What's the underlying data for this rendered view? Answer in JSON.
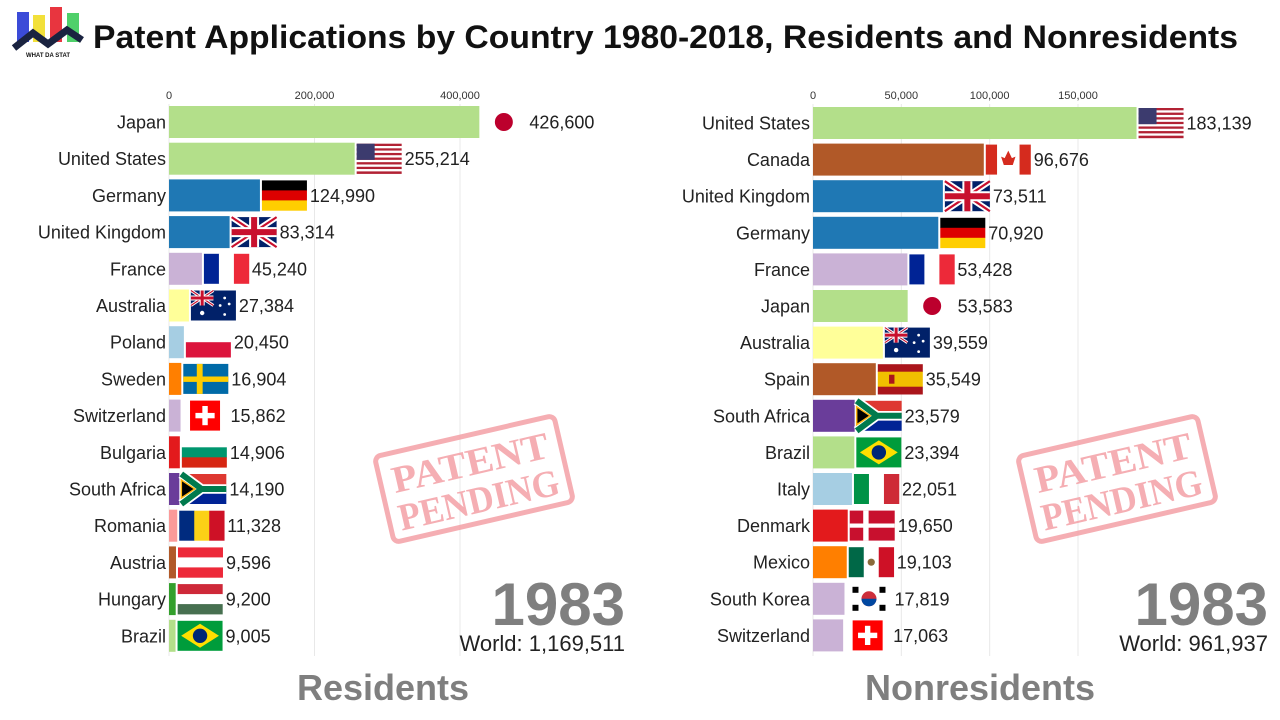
{
  "header": {
    "title": "Patent Applications by Country 1980-2018, Residents and Nonresidents",
    "logo_text": "WHAT DA STAT"
  },
  "stamp": {
    "line1": "PATENT",
    "line2": "PENDING",
    "color": "#f4a0a6"
  },
  "chart_data": [
    {
      "type": "bar",
      "orientation": "horizontal",
      "panel_label": "Residents",
      "year": "1983",
      "world_label": "World: 1,169,511",
      "xlim": [
        0,
        440000
      ],
      "ticks": [
        0,
        200000,
        400000
      ],
      "tick_labels": [
        "0",
        "200,000",
        "400,000"
      ],
      "grid": true,
      "categories": [
        "Japan",
        "United States",
        "Germany",
        "United Kingdom",
        "France",
        "Australia",
        "Poland",
        "Sweden",
        "Switzerland",
        "Bulgaria",
        "South Africa",
        "Romania",
        "Austria",
        "Hungary",
        "Brazil"
      ],
      "values": [
        426600,
        255214,
        124990,
        83314,
        45240,
        27384,
        20450,
        16904,
        15862,
        14906,
        14190,
        11328,
        9596,
        9200,
        9005
      ],
      "value_labels": [
        "426,600",
        "255,214",
        "124,990",
        "83,314",
        "45,240",
        "27,384",
        "20,450",
        "16,904",
        "15,862",
        "14,906",
        "14,190",
        "11,328",
        "9,596",
        "9,200",
        "9,005"
      ],
      "colors": [
        "#b3df8a",
        "#b3df8a",
        "#1f78b4",
        "#1f78b4",
        "#cab2d6",
        "#ffff99",
        "#a6cee3",
        "#ff7f00",
        "#cab2d6",
        "#e31a1c",
        "#6a3d9a",
        "#fb9a99",
        "#b15928",
        "#33a02c",
        "#b3df8a"
      ],
      "flags": [
        "jp",
        "us",
        "de",
        "gb",
        "fr",
        "au",
        "pl",
        "se",
        "ch",
        "bg",
        "za",
        "ro",
        "at",
        "hu",
        "br"
      ]
    },
    {
      "type": "bar",
      "orientation": "horizontal",
      "panel_label": "Nonresidents",
      "year": "1983",
      "world_label": "World: 961,937",
      "xlim": [
        0,
        190000
      ],
      "ticks": [
        0,
        50000,
        100000,
        150000
      ],
      "tick_labels": [
        "0",
        "50,000",
        "100,000",
        "150,000"
      ],
      "grid": true,
      "categories": [
        "United States",
        "Canada",
        "United Kingdom",
        "Germany",
        "France",
        "Japan",
        "Australia",
        "Spain",
        "South Africa",
        "Brazil",
        "Italy",
        "Denmark",
        "Mexico",
        "South Korea",
        "Switzerland"
      ],
      "values": [
        183139,
        96676,
        73511,
        70920,
        53428,
        53583,
        39559,
        35549,
        23579,
        23394,
        22051,
        19650,
        19103,
        17819,
        17063
      ],
      "value_labels": [
        "183,139",
        "96,676",
        "73,511",
        "70,920",
        "53,428",
        "53,583",
        "39,559",
        "35,549",
        "23,579",
        "23,394",
        "22,051",
        "19,650",
        "19,103",
        "17,819",
        "17,063"
      ],
      "colors": [
        "#b3df8a",
        "#b15928",
        "#1f78b4",
        "#1f78b4",
        "#cab2d6",
        "#b3df8a",
        "#ffff99",
        "#b15928",
        "#6a3d9a",
        "#b3df8a",
        "#a6cee3",
        "#e31a1c",
        "#ff7f00",
        "#cab2d6",
        "#cab2d6"
      ],
      "flags": [
        "us",
        "ca",
        "gb",
        "de",
        "fr",
        "jp",
        "au",
        "es",
        "za",
        "br",
        "it",
        "dk",
        "mx",
        "kr",
        "ch"
      ]
    }
  ]
}
